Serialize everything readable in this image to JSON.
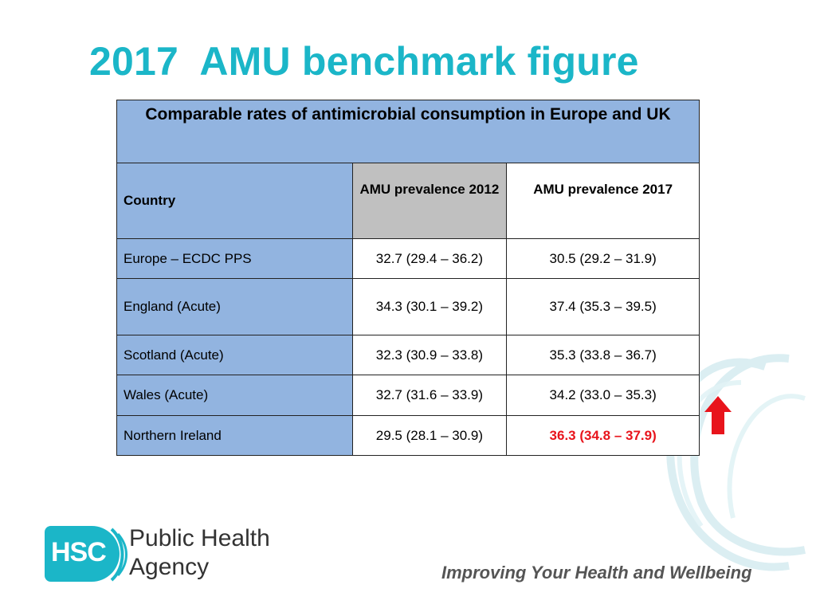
{
  "slide": {
    "title": "2017  AMU benchmark figure"
  },
  "table": {
    "caption": "Comparable rates of antimicrobial consumption in Europe and UK",
    "headers": [
      "Country",
      "AMU prevalence 2012",
      "AMU prevalence 2017"
    ],
    "rows": [
      {
        "country": "Europe – ECDC PPS",
        "v2012": "32.7 (29.4 – 36.2)",
        "v2017": "30.5 (29.2 – 31.9)"
      },
      {
        "country": "England (Acute)",
        "v2012": "34.3 (30.1 – 39.2)",
        "v2017": "37.4 (35.3 – 39.5)"
      },
      {
        "country": "Scotland (Acute)",
        "v2012": "32.3 (30.9 – 33.8)",
        "v2017": "35.3 (33.8 – 36.7)"
      },
      {
        "country": "Wales (Acute)",
        "v2012": "32.7 (31.6 – 33.9)",
        "v2017": "34.2 (33.0 – 35.3)"
      },
      {
        "country": "Northern Ireland",
        "v2012": "29.5 (28.1 – 30.9)",
        "v2017": "36.3 (34.8 – 37.9)"
      }
    ]
  },
  "indicator": {
    "icon": "up-arrow-icon",
    "color": "#e8141c"
  },
  "footer": {
    "logo_abbr": "HSC",
    "org_name_line1": "Public Health",
    "org_name_line2": "Agency",
    "tagline": "Improving Your Health and Wellbeing"
  },
  "colors": {
    "title": "#1bb6c8",
    "header_blue": "#92b4e0",
    "header_grey": "#c0c0c0",
    "highlight": "#e8141c"
  }
}
